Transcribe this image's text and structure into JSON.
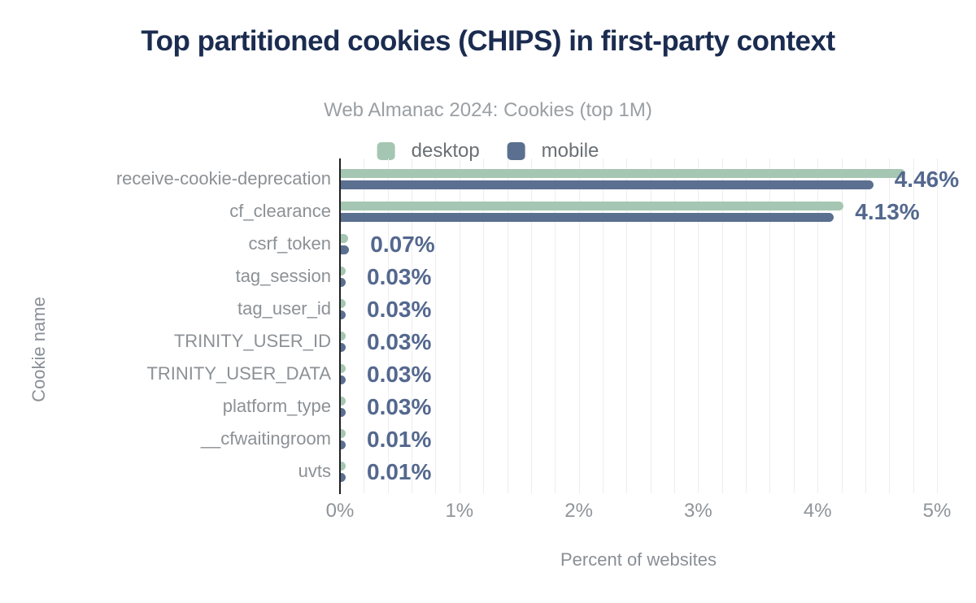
{
  "header": {
    "title": "Top partitioned cookies (CHIPS) in first-party context",
    "subtitle": "Web Almanac 2024: Cookies (top 1M)"
  },
  "legend": {
    "items": [
      {
        "label": "desktop",
        "color": "#a5c6b2"
      },
      {
        "label": "mobile",
        "color": "#5b6f90"
      }
    ]
  },
  "colors": {
    "title": "#1b2c50",
    "desktop_bar": "#a5c6b2",
    "mobile_bar": "#5b6f90",
    "value_label": "#54688e",
    "grid_line": "#ededed",
    "axis_line": "#1f1f1f"
  },
  "chart_data": {
    "type": "bar",
    "orientation": "horizontal",
    "title": "Top partitioned cookies (CHIPS) in first-party context",
    "subtitle": "Web Almanac 2024: Cookies (top 1M)",
    "xlabel": "Percent of websites",
    "ylabel": "Cookie name",
    "xlim": [
      0,
      5
    ],
    "x_ticks": [
      "0%",
      "1%",
      "2%",
      "3%",
      "4%",
      "5%"
    ],
    "minor_grid_step_percent": 0.2,
    "grid": "vertical",
    "legend_position": "top",
    "categories": [
      "receive-cookie-deprecation",
      "cf_clearance",
      "csrf_token",
      "tag_session",
      "tag_user_id",
      "TRINITY_USER_ID",
      "TRINITY_USER_DATA",
      "platform_type",
      "__cfwaitingroom",
      "uvts"
    ],
    "series": [
      {
        "name": "desktop",
        "color": "#a5c6b2",
        "values": [
          4.73,
          4.21,
          0.06,
          0.03,
          0.03,
          0.03,
          0.03,
          0.03,
          0.01,
          0.01
        ]
      },
      {
        "name": "mobile",
        "color": "#5b6f90",
        "values": [
          4.46,
          4.13,
          0.07,
          0.03,
          0.03,
          0.03,
          0.03,
          0.03,
          0.01,
          0.01
        ]
      }
    ],
    "data_labels": [
      "4.46%",
      "4.13%",
      "0.07%",
      "0.03%",
      "0.03%",
      "0.03%",
      "0.03%",
      "0.03%",
      "0.01%",
      "0.01%"
    ]
  }
}
